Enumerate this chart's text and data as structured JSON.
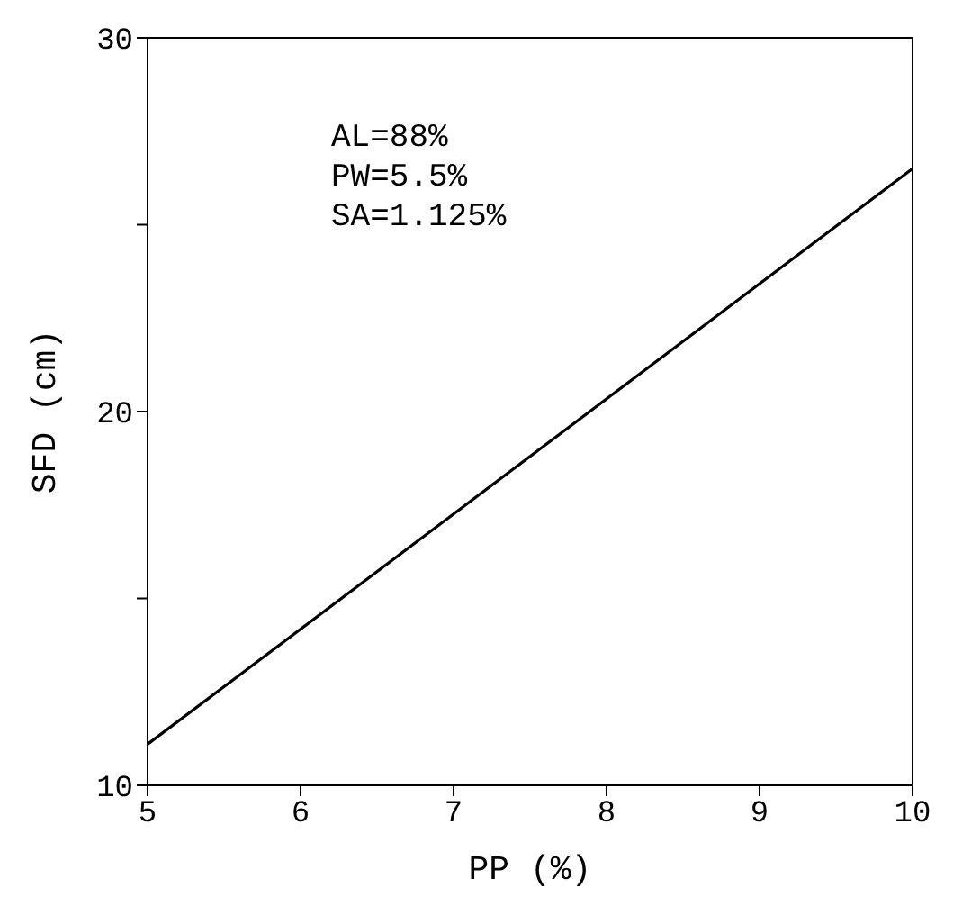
{
  "chart_data": {
    "type": "line",
    "xlabel": "PP (%)",
    "ylabel": "SFD (cm)",
    "x": [
      5,
      10
    ],
    "series": [
      {
        "color": "#000000",
        "values": [
          11.1,
          26.5
        ]
      }
    ],
    "xlim": [
      5,
      10
    ],
    "xticks": [
      5,
      6,
      7,
      8,
      9,
      10
    ],
    "ylim": [
      10,
      30
    ],
    "yticks": [
      10,
      {
        "value": 15,
        "label": null
      },
      20,
      {
        "value": 25,
        "label": null
      },
      30
    ],
    "annotations": [
      "AL=88%",
      "PW=5.5%",
      "SA=1.125%"
    ],
    "legend": false,
    "marker": "none",
    "line_style": "solid"
  }
}
